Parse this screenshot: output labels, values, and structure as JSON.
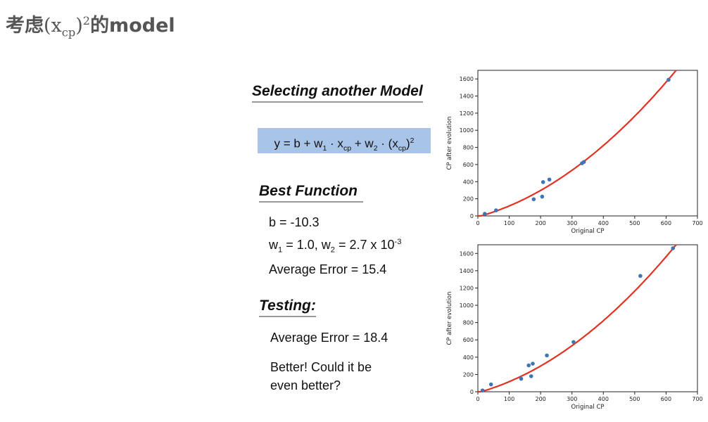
{
  "title": {
    "prefix": "考虑",
    "math_base": "(x",
    "math_sub": "cp",
    "math_close": ")",
    "math_sup": "2",
    "suffix": "的model"
  },
  "slide": {
    "heading_selecting": "Selecting another Model",
    "formula": {
      "p1": "y = b + w",
      "s1": "1",
      "p2": " · x",
      "s2": "cp",
      "p3": " + w",
      "s3": "2",
      "p4": " · (x",
      "s4": "cp",
      "p5": ")",
      "sup": "2"
    },
    "heading_best": "Best Function",
    "b_line": "b = -10.3",
    "w_line": {
      "a": "w",
      "a_sub": "1",
      "b": " = 1.0, w",
      "b_sub": "2",
      "c": " = 2.7 x 10",
      "c_sup": "-3"
    },
    "avg_error_train": "Average Error = 15.4",
    "heading_testing": "Testing:",
    "avg_error_test": "Average Error = 18.4",
    "better_line1": "Better! Could it be",
    "better_line2": "even better?"
  },
  "chart_data": [
    {
      "type": "scatter",
      "title": "",
      "xlabel": "Original CP",
      "ylabel": "CP after evolution",
      "xlim": [
        0,
        700
      ],
      "ylim": [
        0,
        1700
      ],
      "xticks": [
        0,
        100,
        200,
        300,
        400,
        500,
        600,
        700
      ],
      "yticks": [
        0,
        200,
        400,
        600,
        800,
        1000,
        1200,
        1400,
        1600
      ],
      "points": [
        [
          22,
          25
        ],
        [
          58,
          65
        ],
        [
          178,
          195
        ],
        [
          205,
          225
        ],
        [
          208,
          395
        ],
        [
          228,
          425
        ],
        [
          332,
          615
        ],
        [
          338,
          630
        ],
        [
          608,
          1590
        ]
      ],
      "curve": {
        "b": -10.3,
        "w1": 1.0,
        "w2": 0.0027
      },
      "point_color": "#3f75b2",
      "curve_color": "#e03324"
    },
    {
      "type": "scatter",
      "title": "",
      "xlabel": "Original CP",
      "ylabel": "CP after evolution",
      "xlim": [
        0,
        700
      ],
      "ylim": [
        0,
        1700
      ],
      "xticks": [
        0,
        100,
        200,
        300,
        400,
        500,
        600,
        700
      ],
      "yticks": [
        0,
        200,
        400,
        600,
        800,
        1000,
        1200,
        1400,
        1600
      ],
      "points": [
        [
          15,
          15
        ],
        [
          42,
          85
        ],
        [
          138,
          150
        ],
        [
          162,
          305
        ],
        [
          170,
          180
        ],
        [
          175,
          325
        ],
        [
          220,
          420
        ],
        [
          305,
          575
        ],
        [
          518,
          1340
        ],
        [
          622,
          1660
        ]
      ],
      "curve": {
        "b": -10.3,
        "w1": 1.0,
        "w2": 0.0027
      },
      "point_color": "#3f75b2",
      "curve_color": "#e03324"
    }
  ]
}
